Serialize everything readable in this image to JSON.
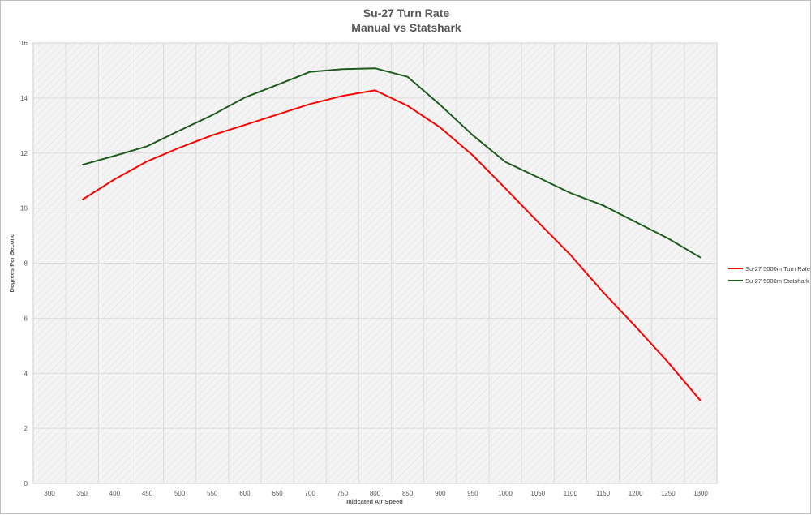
{
  "chart_data": {
    "type": "line",
    "title": "Su-27 Turn Rate",
    "subtitle": "Manual vs Statshark",
    "xlabel": "Inidcated Air Speed",
    "ylabel": "Degrees Per Second",
    "categories": [
      "300",
      "350",
      "400",
      "450",
      "500",
      "550",
      "600",
      "650",
      "700",
      "750",
      "800",
      "850",
      "900",
      "950",
      "1000",
      "1050",
      "1100",
      "1150",
      "1200",
      "1250",
      "1300"
    ],
    "yticks": [
      "0",
      "2",
      "4",
      "6",
      "8",
      "10",
      "12",
      "14",
      "16"
    ],
    "ylim": [
      0,
      16
    ],
    "grid": true,
    "legend_position": "right",
    "series": [
      {
        "name": "Su-27 5000m Turn Rate",
        "color": "#ff0000",
        "values": [
          null,
          10.3,
          11.05,
          11.7,
          12.2,
          12.65,
          13.02,
          13.4,
          13.78,
          14.08,
          14.28,
          13.72,
          12.93,
          11.92,
          10.72,
          9.5,
          8.3,
          6.95,
          5.7,
          4.4,
          3.0
        ]
      },
      {
        "name": "Su-27 5000m Statshark",
        "color": "#1e5c1e",
        "values": [
          null,
          11.57,
          11.9,
          12.25,
          12.82,
          13.38,
          14.02,
          14.48,
          14.95,
          15.05,
          15.08,
          14.77,
          13.75,
          12.65,
          11.68,
          11.12,
          10.55,
          10.1,
          9.5,
          8.9,
          8.2
        ]
      }
    ]
  }
}
